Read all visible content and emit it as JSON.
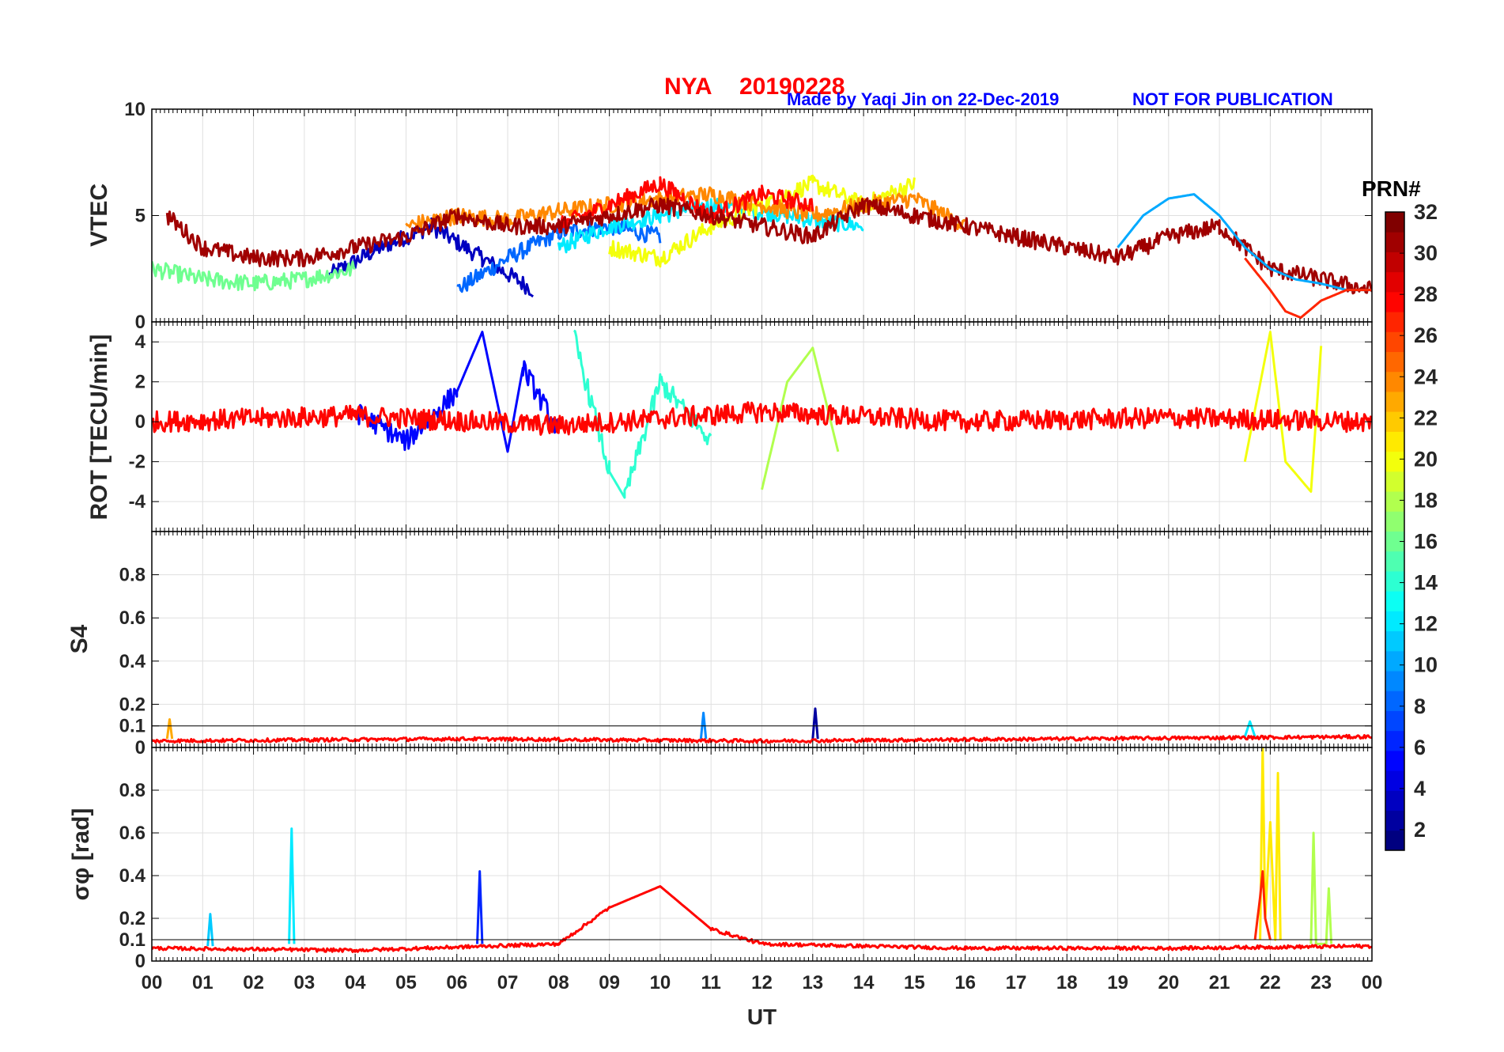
{
  "header": {
    "station": "NYA",
    "date": "20190228",
    "credit": "Made by Yaqi Jin on 22-Dec-2019",
    "notice": "NOT FOR PUBLICATION"
  },
  "colors": {
    "header_red": "#ff0000",
    "header_blue": "#0000ff",
    "colormap": "jet"
  },
  "chart_data": [
    {
      "type": "line",
      "ylabel": "VTEC",
      "ylim": [
        0,
        10
      ],
      "yticks": [
        "0",
        "5",
        "10"
      ],
      "xlim": [
        0,
        24
      ],
      "grid": true,
      "series": [
        {
          "prn": 3,
          "x": [
            3.5,
            4.5,
            5.5,
            6.5,
            7.5
          ],
          "y": [
            2.2,
            3.5,
            4.5,
            3.0,
            1.5
          ]
        },
        {
          "prn": 8,
          "x": [
            6.0,
            7.0,
            8.0,
            9.0,
            10.0
          ],
          "y": [
            1.5,
            3.0,
            4.2,
            4.5,
            4.0
          ]
        },
        {
          "prn": 12,
          "x": [
            8.0,
            9.0,
            10.0,
            11.0,
            12.0,
            13.0,
            14.0
          ],
          "y": [
            3.5,
            4.5,
            5.0,
            5.5,
            5.2,
            4.8,
            4.5
          ]
        },
        {
          "prn": 16,
          "x": [
            0,
            1,
            2,
            3,
            4
          ],
          "y": [
            2.5,
            2.0,
            1.8,
            2.0,
            2.5
          ]
        },
        {
          "prn": 20,
          "x": [
            9.0,
            10.0,
            11.0,
            12.0,
            13.0,
            14.0,
            15.0
          ],
          "y": [
            3.5,
            3.0,
            4.5,
            5.5,
            6.5,
            5.5,
            6.5
          ]
        },
        {
          "prn": 24,
          "x": [
            5,
            6,
            7,
            8,
            9,
            10,
            11,
            12,
            13,
            14,
            15,
            16
          ],
          "y": [
            4.5,
            5.0,
            4.8,
            5.2,
            5.5,
            5.8,
            6.0,
            5.5,
            5.0,
            5.5,
            5.8,
            4.5
          ]
        },
        {
          "prn": 28,
          "x": [
            8.0,
            9.0,
            10.0,
            11.0,
            12.0,
            13.0
          ],
          "y": [
            4.5,
            5.5,
            6.5,
            5.0,
            6.0,
            5.5
          ]
        },
        {
          "prn": 31,
          "x": [
            0.3,
            1.0,
            2.0,
            3.0,
            4.0,
            5.0,
            6.0,
            7.0,
            8.0,
            9.0,
            10.0,
            11.0,
            12.0,
            13.0,
            14.0,
            15.0,
            16.0,
            17.0,
            18.0,
            19.0,
            20.0,
            21.0,
            22.0,
            23.0,
            24.0
          ],
          "y": [
            5.0,
            3.5,
            3.0,
            3.0,
            3.5,
            4.0,
            5.0,
            4.5,
            4.5,
            5.0,
            5.5,
            5.0,
            4.5,
            4.0,
            5.5,
            5.0,
            4.5,
            4.0,
            3.5,
            3.0,
            4.0,
            4.5,
            2.5,
            2.0,
            1.5
          ]
        },
        {
          "prn": 10,
          "x": [
            19.0,
            19.5,
            20.0,
            20.5,
            21.0,
            21.5,
            22.0,
            22.5,
            23.0,
            23.5,
            24.0
          ],
          "y": [
            3.5,
            5.0,
            5.8,
            6.0,
            5.0,
            3.5,
            2.5,
            2.0,
            1.8,
            1.5,
            1.5
          ]
        },
        {
          "prn": 27,
          "x": [
            21.5,
            22.0,
            22.3,
            22.6,
            23.0,
            23.5,
            24.0
          ],
          "y": [
            3.0,
            1.5,
            0.5,
            0.2,
            1.0,
            1.5,
            1.5
          ]
        }
      ]
    },
    {
      "type": "line",
      "ylabel": "ROT [TECU/min]",
      "ylim": [
        -5.5,
        5
      ],
      "yticks": [
        "-4",
        "-2",
        "0",
        "2",
        "4"
      ],
      "xlim": [
        0,
        24
      ],
      "grid": true,
      "series": [
        {
          "prn": 5,
          "x": [
            4.0,
            5.0,
            6.0,
            6.5,
            7.0,
            7.3,
            8.0
          ],
          "y": [
            0.5,
            -1.0,
            1.5,
            4.5,
            -1.5,
            2.7,
            -0.5
          ]
        },
        {
          "prn": 14,
          "x": [
            8.3,
            9.0,
            9.3,
            10.0,
            11.0
          ],
          "y": [
            4.3,
            -2.5,
            -3.8,
            2.0,
            -1.0
          ]
        },
        {
          "prn": 18,
          "x": [
            12.0,
            12.5,
            13.0,
            13.5
          ],
          "y": [
            -3.4,
            2.0,
            3.7,
            -1.5
          ]
        },
        {
          "prn": 20,
          "x": [
            21.5,
            22.0,
            22.3,
            22.8,
            23.0
          ],
          "y": [
            -2.0,
            4.5,
            -2.0,
            -3.5,
            3.8
          ]
        },
        {
          "prn": 28,
          "x": [
            0,
            4,
            8,
            12,
            16,
            20,
            24
          ],
          "y": [
            0,
            0.3,
            -0.2,
            0.5,
            0,
            0.2,
            0
          ]
        }
      ]
    },
    {
      "type": "line",
      "ylabel": "S4",
      "ylim": [
        0,
        1
      ],
      "yticks": [
        "0",
        "0.1",
        "0.2",
        "0.4",
        "0.6",
        "0.8"
      ],
      "xlim": [
        0,
        24
      ],
      "grid": true,
      "reference_line": 0.1,
      "series": [
        {
          "prn": 9,
          "x": [
            10.8,
            10.85,
            10.9
          ],
          "y": [
            0.04,
            0.16,
            0.04
          ]
        },
        {
          "prn": 2,
          "x": [
            13.0,
            13.05,
            13.1
          ],
          "y": [
            0.04,
            0.18,
            0.04
          ]
        },
        {
          "prn": 23,
          "x": [
            0.3,
            0.35,
            0.4
          ],
          "y": [
            0.04,
            0.13,
            0.04
          ]
        },
        {
          "prn": 12,
          "x": [
            21.5,
            21.6,
            21.7
          ],
          "y": [
            0.05,
            0.12,
            0.05
          ]
        },
        {
          "prn": 28,
          "x": [
            0,
            6,
            12,
            18,
            24
          ],
          "y": [
            0.03,
            0.04,
            0.03,
            0.04,
            0.05
          ]
        }
      ]
    },
    {
      "type": "line",
      "ylabel": "σφ [rad]",
      "ylim": [
        0,
        1
      ],
      "yticks": [
        "0",
        "0.1",
        "0.2",
        "0.4",
        "0.6",
        "0.8"
      ],
      "xlim": [
        0,
        24
      ],
      "xlabel": "UT",
      "xticks": [
        "00",
        "01",
        "02",
        "03",
        "04",
        "05",
        "06",
        "07",
        "08",
        "09",
        "10",
        "11",
        "12",
        "13",
        "14",
        "15",
        "16",
        "17",
        "18",
        "19",
        "20",
        "21",
        "22",
        "23",
        "00"
      ],
      "grid": true,
      "reference_line": 0.1,
      "series": [
        {
          "prn": 12,
          "x": [
            2.7,
            2.75,
            2.8
          ],
          "y": [
            0.08,
            0.62,
            0.08
          ]
        },
        {
          "prn": 11,
          "x": [
            1.1,
            1.15,
            1.2
          ],
          "y": [
            0.07,
            0.22,
            0.07
          ]
        },
        {
          "prn": 6,
          "x": [
            6.4,
            6.45,
            6.5
          ],
          "y": [
            0.08,
            0.42,
            0.08
          ]
        },
        {
          "prn": 21,
          "x": [
            21.8,
            21.85,
            21.9,
            22.0,
            22.1,
            22.15,
            22.2
          ],
          "y": [
            0.1,
            1.0,
            0.2,
            0.65,
            0.1,
            0.88,
            0.1
          ]
        },
        {
          "prn": 18,
          "x": [
            22.8,
            22.85,
            22.9,
            23.1,
            23.15,
            23.2
          ],
          "y": [
            0.08,
            0.6,
            0.08,
            0.08,
            0.34,
            0.08
          ]
        },
        {
          "prn": 27,
          "x": [
            21.7,
            21.8,
            21.85,
            21.9,
            22.0
          ],
          "y": [
            0.1,
            0.3,
            0.42,
            0.2,
            0.1
          ]
        },
        {
          "prn": 28,
          "x": [
            0,
            4,
            8,
            9,
            9.5,
            10,
            10.5,
            11,
            12,
            16,
            20,
            24
          ],
          "y": [
            0.06,
            0.05,
            0.08,
            0.25,
            0.3,
            0.35,
            0.25,
            0.15,
            0.08,
            0.06,
            0.06,
            0.07
          ]
        }
      ]
    }
  ],
  "colorbar": {
    "label": "PRN#",
    "range": [
      1,
      32
    ],
    "ticks": [
      "2",
      "4",
      "6",
      "8",
      "10",
      "12",
      "14",
      "16",
      "18",
      "20",
      "22",
      "24",
      "26",
      "28",
      "30",
      "32"
    ]
  }
}
